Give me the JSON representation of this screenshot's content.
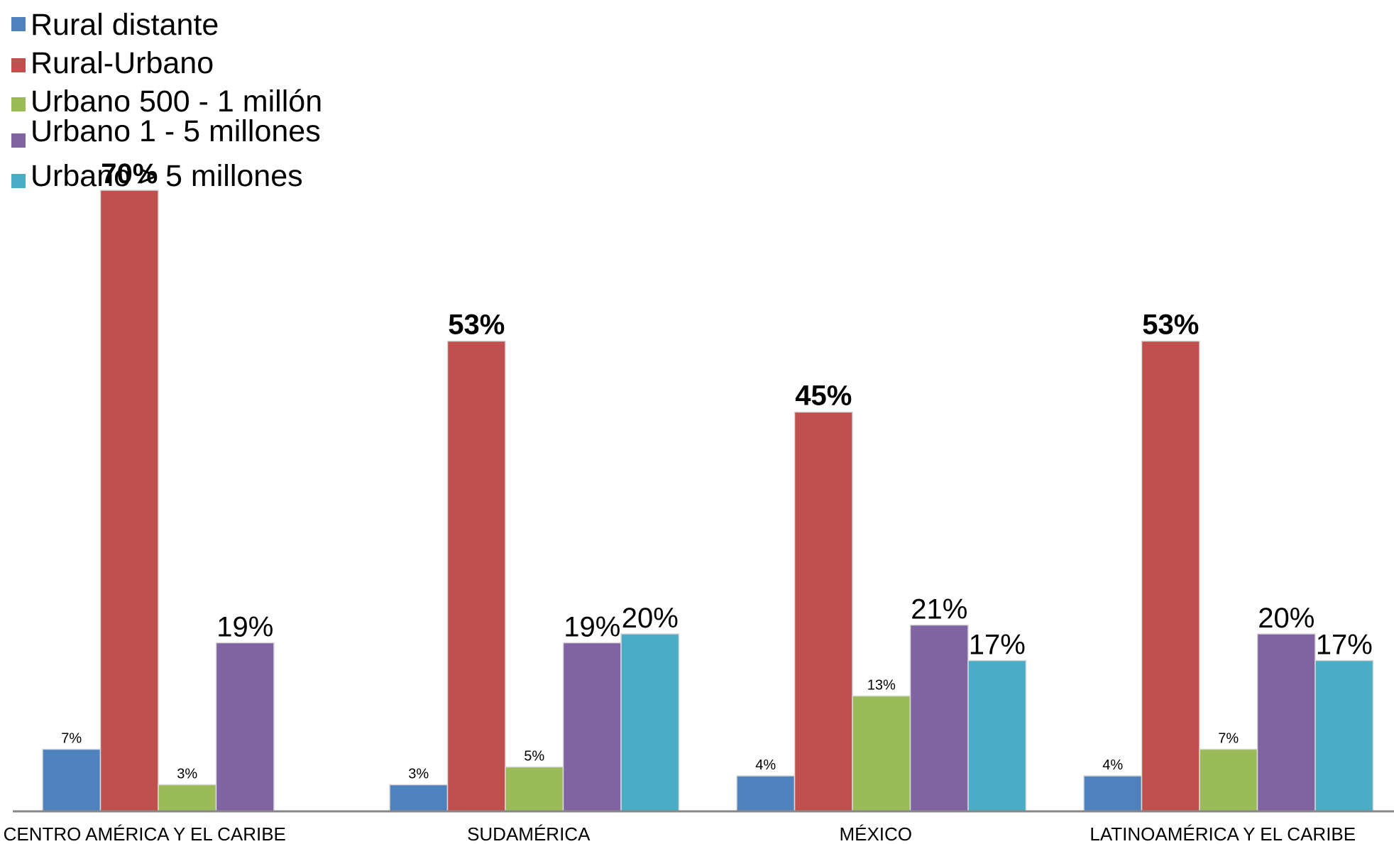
{
  "chart_data": {
    "type": "bar",
    "categories": [
      "CENTRO AMÉRICA Y EL CARIBE",
      "SUDAMÉRICA",
      "MÉXICO",
      "LATINOAMÉRICA Y EL CARIBE"
    ],
    "series": [
      {
        "name": "Rural distante",
        "color": "#4f81bd",
        "values": [
          7,
          3,
          4,
          4
        ],
        "labels": [
          "7%",
          "3%",
          "4%",
          "4%"
        ]
      },
      {
        "name": "Rural-Urbano",
        "color": "#c0504d",
        "values": [
          70,
          53,
          45,
          53
        ],
        "labels": [
          "70%",
          "53%",
          "45%",
          "53%"
        ]
      },
      {
        "name": "Urbano 500 - 1 millón",
        "color": "#9bbb59",
        "values": [
          3,
          5,
          13,
          7
        ],
        "labels": [
          "3%",
          "5%",
          "13%",
          "7%"
        ]
      },
      {
        "name": "Urbano 1 - 5 millones",
        "color": "#8064a2",
        "values": [
          19,
          19,
          21,
          20
        ],
        "labels": [
          "19%",
          "19%",
          "21%",
          "20%"
        ]
      },
      {
        "name": "Urbano > 5 millones",
        "color": "#4bacc6",
        "values": [
          null,
          20,
          17,
          17
        ],
        "labels": [
          "",
          "20%",
          "17%",
          "17%"
        ]
      }
    ],
    "ylim": [
      0,
      70
    ],
    "legend": "top-left",
    "grid": false
  }
}
